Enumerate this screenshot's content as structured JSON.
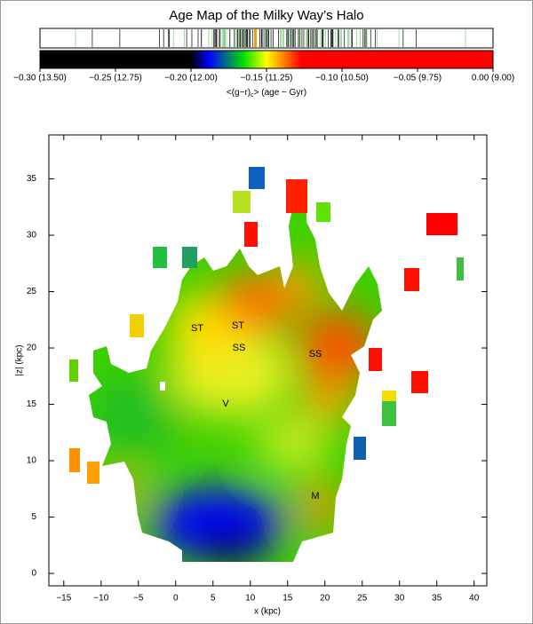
{
  "chart_data": [
    {
      "type": "colorbar",
      "title": "Age Map of the Milky Way’s Halo",
      "xlabel": [
        "<(g−r)",
        "c",
        "> (age − Gyr)"
      ],
      "xlim": [
        -0.3,
        0.0
      ],
      "xticks": [
        {
          "value": -0.3,
          "label": "−0.30 (13.50)"
        },
        {
          "value": -0.25,
          "label": "−0.25 (12.75)"
        },
        {
          "value": -0.2,
          "label": "−0.20 (12.00)"
        },
        {
          "value": -0.15,
          "label": "−0.15 (11.25)"
        },
        {
          "value": -0.1,
          "label": "−0.10 (10.50)"
        },
        {
          "value": -0.05,
          "label": "−0.05 (9.75)"
        },
        {
          "value": 0.0,
          "label": "0.00 (9.00)"
        }
      ],
      "colormap": [
        {
          "value": -0.3,
          "color": "#000000"
        },
        {
          "value": -0.2,
          "color": "#000000"
        },
        {
          "value": -0.188,
          "color": "#0000ff"
        },
        {
          "value": -0.165,
          "color": "#00e000"
        },
        {
          "value": -0.15,
          "color": "#ffff00"
        },
        {
          "value": -0.127,
          "color": "#ff0000"
        },
        {
          "value": 0.0,
          "color": "#ff0000"
        }
      ]
    },
    {
      "type": "heatmap",
      "xlabel": "x (kpc)",
      "ylabel": "|z| (kpc)",
      "xlim": [
        -17,
        41.7
      ],
      "ylim": [
        -1.1,
        38.9
      ],
      "xticks": [
        {
          "value": -15,
          "label": "−15"
        },
        {
          "value": -10,
          "label": "−10"
        },
        {
          "value": -5,
          "label": "−5"
        },
        0,
        5,
        10,
        15,
        20,
        25,
        30,
        35,
        40
      ],
      "yticks": [
        0,
        5,
        10,
        15,
        20,
        25,
        30,
        35
      ],
      "annotations": [
        "ST",
        "ST",
        "SS",
        "SS",
        "V",
        "M"
      ]
    }
  ]
}
